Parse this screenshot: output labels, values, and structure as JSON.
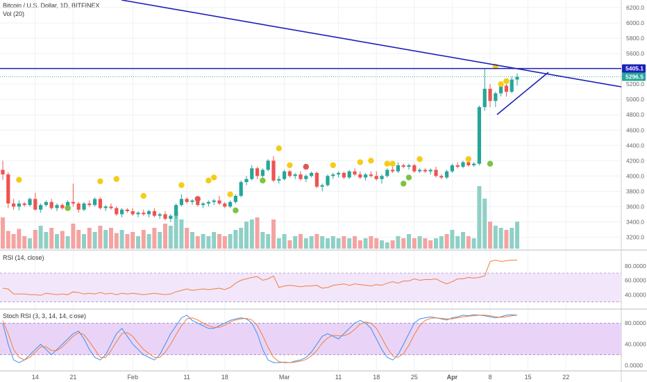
{
  "header": {
    "title": "Bitcoin / U.S. Dollar, 1D, BITFINEX",
    "volume_label": "Vol (20)",
    "rsi_label": "RSI (14, close)",
    "stoch_label": "Stoch RSI (3, 3, 14, 14, close)"
  },
  "colors": {
    "up": "#26a69a",
    "down": "#ef5350",
    "vol_up": "#8fd0c6",
    "vol_down": "#f4a3a1",
    "trend": "#1b1fb8",
    "rsi_line": "#f57c3a",
    "stoch_k": "#3d8fe6",
    "stoch_d": "#f57c3a",
    "band": "#e9d4f7",
    "yellow_dot": "#f5cc16",
    "green_dot": "#7dc242",
    "red_dot": "#e25555"
  },
  "chart_data": [
    {
      "type": "candlestick",
      "title": "Bitcoin / U.S. Dollar, 1D, BITFINEX",
      "y_ticks": [
        3200,
        3400,
        3600,
        3800,
        4000,
        4200,
        4400,
        4600,
        4800,
        5000,
        5200,
        5400,
        5600,
        5800,
        6000,
        6200
      ],
      "ylim": [
        3050,
        6300
      ],
      "x_tick_labels": [
        "14",
        "21",
        "Feb",
        "11",
        "18",
        "Mar",
        "11",
        "18",
        "25",
        "Apr",
        "8",
        "15",
        "22"
      ],
      "x_tick_index": [
        6,
        13,
        24,
        34,
        41,
        52,
        62,
        69,
        76,
        83,
        90,
        97,
        104
      ],
      "candles": [
        [
          4080,
          4200,
          3950,
          4020
        ],
        [
          4020,
          4050,
          3580,
          3640
        ],
        [
          3640,
          3700,
          3560,
          3600
        ],
        [
          3600,
          3680,
          3550,
          3640
        ],
        [
          3640,
          3660,
          3600,
          3620
        ],
        [
          3620,
          3720,
          3600,
          3700
        ],
        [
          3700,
          3780,
          3550,
          3560
        ],
        [
          3560,
          3640,
          3520,
          3620
        ],
        [
          3620,
          3680,
          3600,
          3660
        ],
        [
          3660,
          3700,
          3560,
          3580
        ],
        [
          3580,
          3640,
          3540,
          3620
        ],
        [
          3620,
          3640,
          3560,
          3580
        ],
        [
          3580,
          3680,
          3560,
          3660
        ],
        [
          3660,
          3900,
          3600,
          3640
        ],
        [
          3640,
          3660,
          3520,
          3560
        ],
        [
          3560,
          3660,
          3540,
          3640
        ],
        [
          3640,
          3680,
          3600,
          3620
        ],
        [
          3620,
          3720,
          3600,
          3700
        ],
        [
          3700,
          3720,
          3560,
          3580
        ],
        [
          3580,
          3620,
          3540,
          3600
        ],
        [
          3600,
          3640,
          3560,
          3580
        ],
        [
          3580,
          3600,
          3480,
          3500
        ],
        [
          3500,
          3580,
          3460,
          3560
        ],
        [
          3560,
          3580,
          3520,
          3540
        ],
        [
          3540,
          3580,
          3480,
          3500
        ],
        [
          3500,
          3540,
          3460,
          3520
        ],
        [
          3520,
          3560,
          3480,
          3500
        ],
        [
          3500,
          3560,
          3460,
          3540
        ],
        [
          3540,
          3580,
          3460,
          3480
        ],
        [
          3480,
          3520,
          3440,
          3500
        ],
        [
          3500,
          3540,
          3420,
          3440
        ],
        [
          3440,
          3500,
          3400,
          3480
        ],
        [
          3480,
          3640,
          3440,
          3620
        ],
        [
          3620,
          3760,
          3600,
          3700
        ],
        [
          3700,
          3720,
          3640,
          3660
        ],
        [
          3660,
          3700,
          3620,
          3680
        ],
        [
          3680,
          3700,
          3600,
          3620
        ],
        [
          3620,
          3660,
          3580,
          3640
        ],
        [
          3640,
          3680,
          3600,
          3660
        ],
        [
          3660,
          3700,
          3620,
          3680
        ],
        [
          3680,
          3740,
          3620,
          3640
        ],
        [
          3640,
          3660,
          3580,
          3600
        ],
        [
          3600,
          3680,
          3580,
          3660
        ],
        [
          3660,
          3760,
          3640,
          3740
        ],
        [
          3740,
          3940,
          3720,
          3920
        ],
        [
          3920,
          4000,
          3880,
          3960
        ],
        [
          3960,
          4140,
          3940,
          4100
        ],
        [
          4100,
          4120,
          3960,
          4000
        ],
        [
          4000,
          4100,
          3980,
          4080
        ],
        [
          4080,
          4220,
          4060,
          4200
        ],
        [
          4200,
          4260,
          3920,
          3940
        ],
        [
          3940,
          4000,
          3900,
          3960
        ],
        [
          3960,
          4080,
          3940,
          4060
        ],
        [
          4060,
          4080,
          3980,
          4000
        ],
        [
          4000,
          4040,
          3960,
          4020
        ],
        [
          4020,
          4060,
          3940,
          3960
        ],
        [
          3960,
          4020,
          3920,
          4000
        ],
        [
          4000,
          4060,
          3980,
          4040
        ],
        [
          4040,
          4060,
          3840,
          3860
        ],
        [
          3860,
          3900,
          3800,
          3880
        ],
        [
          3880,
          4020,
          3860,
          4000
        ],
        [
          4000,
          4040,
          3960,
          4020
        ],
        [
          4020,
          4060,
          3980,
          4040
        ],
        [
          4040,
          4060,
          3960,
          3980
        ],
        [
          3980,
          4080,
          3960,
          4060
        ],
        [
          4060,
          4100,
          4000,
          4020
        ],
        [
          4020,
          4060,
          3960,
          3980
        ],
        [
          3980,
          4040,
          3940,
          4020
        ],
        [
          4020,
          4060,
          3980,
          4000
        ],
        [
          4000,
          4060,
          3940,
          3960
        ],
        [
          3960,
          4020,
          3900,
          4000
        ],
        [
          4000,
          4100,
          3980,
          4080
        ],
        [
          4080,
          4120,
          4040,
          4060
        ],
        [
          4060,
          4180,
          4040,
          4140
        ],
        [
          4140,
          4160,
          4100,
          4120
        ],
        [
          4120,
          4160,
          4080,
          4140
        ],
        [
          4140,
          4160,
          4040,
          4060
        ],
        [
          4060,
          4100,
          4040,
          4080
        ],
        [
          4080,
          4100,
          4040,
          4060
        ],
        [
          4060,
          4100,
          4020,
          4080
        ],
        [
          4080,
          4120,
          3980,
          4000
        ],
        [
          4000,
          4020,
          3960,
          3980
        ],
        [
          3980,
          4080,
          3960,
          4060
        ],
        [
          4060,
          4160,
          4040,
          4140
        ],
        [
          4140,
          4180,
          4100,
          4120
        ],
        [
          4120,
          4200,
          4100,
          4180
        ],
        [
          4180,
          4200,
          4120,
          4140
        ],
        [
          4140,
          4180,
          4120,
          4160
        ],
        [
          4160,
          4920,
          4140,
          4900
        ],
        [
          4900,
          5400,
          4850,
          5140
        ],
        [
          5140,
          5200,
          4900,
          4980
        ],
        [
          4980,
          5100,
          4900,
          5080
        ],
        [
          5080,
          5200,
          5040,
          5180
        ],
        [
          5180,
          5260,
          5040,
          5100
        ],
        [
          5100,
          5300,
          5080,
          5260
        ],
        [
          5260,
          5340,
          5180,
          5296
        ]
      ],
      "volume": [
        30,
        17,
        14,
        19,
        12,
        10,
        18,
        22,
        16,
        20,
        14,
        17,
        12,
        24,
        18,
        14,
        20,
        16,
        22,
        18,
        20,
        15,
        18,
        14,
        16,
        12,
        18,
        14,
        20,
        16,
        24,
        22,
        36,
        28,
        20,
        16,
        12,
        14,
        12,
        16,
        14,
        12,
        14,
        18,
        20,
        26,
        28,
        30,
        16,
        14,
        28,
        10,
        14,
        8,
        12,
        14,
        10,
        12,
        14,
        12,
        10,
        12,
        10,
        12,
        10,
        12,
        8,
        10,
        12,
        10,
        8,
        6,
        8,
        12,
        10,
        14,
        10,
        12,
        10,
        8,
        10,
        12,
        14,
        18,
        12,
        16,
        12,
        10,
        60,
        48,
        26,
        22,
        20,
        18,
        20,
        26
      ],
      "volume_dir": [
        0,
        0,
        0,
        0,
        0,
        1,
        0,
        1,
        1,
        0,
        1,
        0,
        1,
        0,
        0,
        1,
        0,
        1,
        0,
        1,
        0,
        0,
        1,
        0,
        0,
        1,
        0,
        1,
        0,
        1,
        0,
        1,
        1,
        1,
        0,
        1,
        0,
        1,
        1,
        1,
        0,
        0,
        1,
        1,
        1,
        1,
        1,
        0,
        1,
        1,
        0,
        1,
        1,
        0,
        1,
        0,
        1,
        1,
        0,
        1,
        1,
        1,
        1,
        0,
        1,
        0,
        0,
        1,
        0,
        0,
        1,
        1,
        0,
        1,
        0,
        1,
        0,
        1,
        0,
        0,
        1,
        1,
        0,
        1,
        1,
        1,
        0,
        1,
        1,
        1,
        0,
        1,
        1,
        0,
        1,
        1
      ],
      "rsi": [
        49,
        48,
        41,
        41,
        41,
        40,
        40,
        39,
        42,
        41,
        40,
        41,
        40,
        44,
        43,
        41,
        42,
        41,
        43,
        41,
        42,
        40,
        42,
        41,
        42,
        41,
        40,
        41,
        42,
        41,
        40,
        41,
        44,
        46,
        48,
        46,
        47,
        48,
        47,
        48,
        49,
        47,
        50,
        56,
        60,
        62,
        64,
        65,
        60,
        62,
        66,
        50,
        52,
        53,
        52,
        51,
        52,
        52,
        53,
        49,
        50,
        53,
        54,
        55,
        53,
        55,
        54,
        53,
        52,
        54,
        53,
        56,
        58,
        56,
        59,
        59,
        62,
        60,
        61,
        61,
        62,
        58,
        55,
        58,
        62,
        62,
        64,
        63,
        64,
        66,
        86,
        88,
        86,
        87,
        88,
        88
      ],
      "stoch_k": [
        80,
        40,
        10,
        5,
        10,
        20,
        30,
        40,
        30,
        20,
        30,
        40,
        50,
        60,
        65,
        50,
        30,
        15,
        10,
        20,
        40,
        60,
        70,
        55,
        40,
        30,
        20,
        15,
        10,
        20,
        40,
        60,
        75,
        90,
        95,
        85,
        80,
        75,
        70,
        70,
        75,
        80,
        85,
        88,
        90,
        88,
        80,
        60,
        30,
        10,
        5,
        5,
        6,
        5,
        8,
        10,
        15,
        25,
        40,
        55,
        60,
        55,
        50,
        60,
        70,
        80,
        85,
        80,
        70,
        50,
        30,
        15,
        10,
        20,
        40,
        60,
        80,
        88,
        90,
        92,
        90,
        88,
        86,
        90,
        92,
        95,
        94,
        96,
        95,
        94,
        92,
        90,
        92,
        95,
        96,
        95
      ],
      "stoch_d": [
        85,
        60,
        30,
        15,
        10,
        15,
        25,
        35,
        35,
        28,
        28,
        35,
        45,
        55,
        62,
        58,
        45,
        30,
        15,
        15,
        28,
        45,
        60,
        62,
        55,
        42,
        30,
        22,
        15,
        15,
        25,
        40,
        58,
        75,
        88,
        90,
        86,
        80,
        75,
        72,
        72,
        76,
        82,
        86,
        88,
        89,
        86,
        76,
        56,
        34,
        15,
        7,
        5,
        5,
        6,
        8,
        11,
        18,
        28,
        42,
        52,
        57,
        56,
        56,
        60,
        68,
        78,
        82,
        80,
        70,
        52,
        33,
        18,
        15,
        22,
        38,
        58,
        75,
        85,
        89,
        90,
        89,
        88,
        88,
        90,
        92,
        93,
        94,
        95,
        95,
        94,
        92,
        91,
        92,
        94,
        95
      ],
      "dots": [
        {
          "i": 3,
          "p": 3950,
          "c": "yellow"
        },
        {
          "i": 12,
          "p": 3580,
          "c": "green"
        },
        {
          "i": 18,
          "p": 3930,
          "c": "yellow"
        },
        {
          "i": 21,
          "p": 3960,
          "c": "yellow"
        },
        {
          "i": 26,
          "p": 3740,
          "c": "yellow"
        },
        {
          "i": 33,
          "p": 3880,
          "c": "yellow"
        },
        {
          "i": 36,
          "p": 3700,
          "c": "red"
        },
        {
          "i": 38,
          "p": 3940,
          "c": "yellow"
        },
        {
          "i": 39,
          "p": 3980,
          "c": "yellow"
        },
        {
          "i": 42,
          "p": 3760,
          "c": "yellow"
        },
        {
          "i": 43,
          "p": 3550,
          "c": "green"
        },
        {
          "i": 51,
          "p": 4360,
          "c": "yellow"
        },
        {
          "i": 48,
          "p": 3940,
          "c": "green"
        },
        {
          "i": 53,
          "p": 4140,
          "c": "yellow"
        },
        {
          "i": 56,
          "p": 4120,
          "c": "red"
        },
        {
          "i": 61,
          "p": 4140,
          "c": "yellow"
        },
        {
          "i": 66,
          "p": 4180,
          "c": "yellow"
        },
        {
          "i": 68,
          "p": 4200,
          "c": "yellow"
        },
        {
          "i": 71,
          "p": 4160,
          "c": "yellow"
        },
        {
          "i": 72,
          "p": 4160,
          "c": "yellow"
        },
        {
          "i": 74,
          "p": 3900,
          "c": "green"
        },
        {
          "i": 75,
          "p": 3980,
          "c": "green"
        },
        {
          "i": 77,
          "p": 4220,
          "c": "yellow"
        },
        {
          "i": 86,
          "p": 4220,
          "c": "yellow"
        },
        {
          "i": 90,
          "p": 4160,
          "c": "green"
        },
        {
          "i": 91,
          "p": 5430,
          "c": "yellow"
        },
        {
          "i": 92,
          "p": 5200,
          "c": "yellow"
        },
        {
          "i": 93,
          "p": 5240,
          "c": "yellow"
        }
      ],
      "levels": {
        "hline": 5405.1,
        "last": 5296.5,
        "hline_label": "5405.1",
        "last_label": "5296.5"
      }
    }
  ],
  "rsi_axis": {
    "ticks": [
      "80.0000",
      "60.0000",
      "40.0000"
    ],
    "values": [
      80,
      60,
      40
    ]
  },
  "stoch_axis": {
    "ticks": [
      "80.0000",
      "40.0000",
      "0.0000"
    ],
    "values": [
      80,
      40,
      0
    ]
  }
}
